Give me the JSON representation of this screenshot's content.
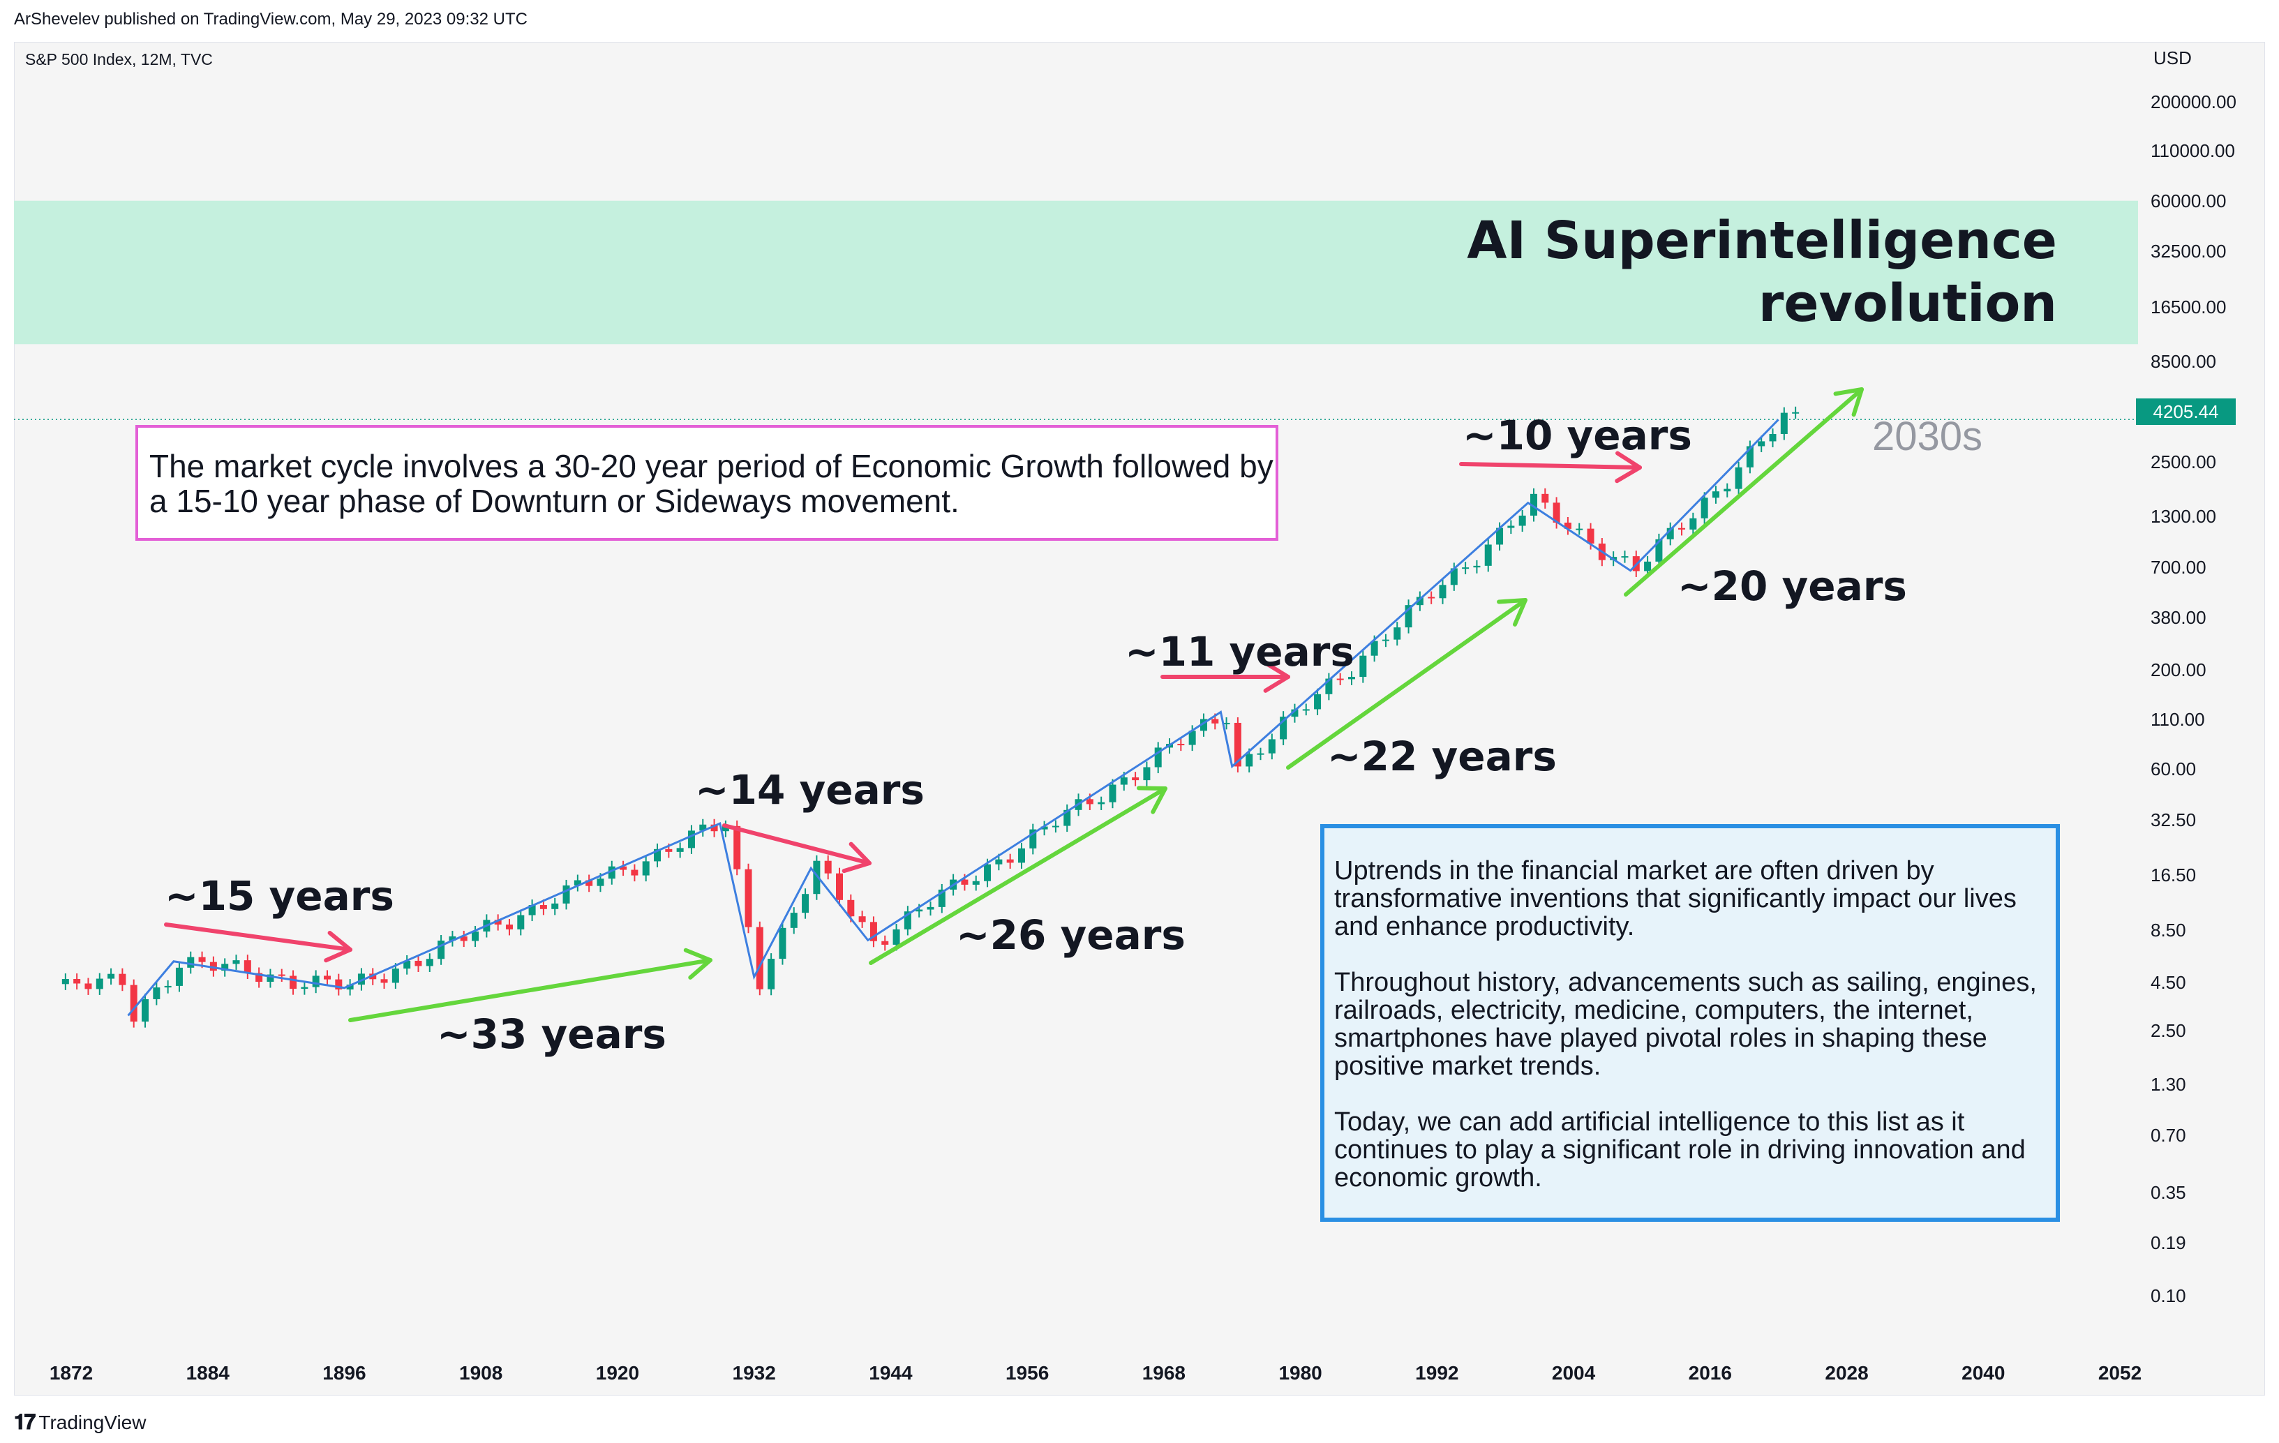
{
  "header": {
    "published": "ArShevelev published on TradingView.com, May 29, 2023 09:32 UTC",
    "symbol": "S&P 500 Index, 12M, TVC",
    "currency": "USD"
  },
  "price_tag": "4205.44",
  "band": {
    "title_line1": "AI Superintelligence",
    "title_line2": "revolution",
    "color": "#c5f0de"
  },
  "notes": {
    "cycle": "The market cycle involves a 30-20 year period of Economic Growth followed by a 15-10 year phase of Downturn or Sideways movement.",
    "uptrends_p1": "Uptrends in the financial market are often driven by transformative inventions that significantly impact our lives and enhance productivity.",
    "uptrends_p2": "Throughout history, advancements such as sailing, engines, railroads, electricity, medicine, computers, the internet, smartphones have played pivotal roles in shaping these positive market trends.",
    "uptrends_p3": "Today, we can add artificial intelligence to this list as it continues to play a significant role in driving innovation and economic growth."
  },
  "annotations": {
    "y15": "~15 years",
    "y33": "~33 years",
    "y14": "~14 years",
    "y26": "~26 years",
    "y11": "~11 years",
    "y22": "~22 years",
    "y10": "~10 years",
    "y20": "~20 years",
    "y2030": "2030s"
  },
  "footer": {
    "brand": "TradingView"
  },
  "colors": {
    "up": "#089981",
    "down": "#f23645",
    "trend": "#3d7fe0",
    "red_arrow": "#f0436c",
    "green_arrow": "#64d63c"
  },
  "chart_data": {
    "type": "candlestick",
    "title": "S&P 500 Index, 12M, TVC",
    "x_ticks": [
      "1872",
      "1884",
      "1896",
      "1908",
      "1920",
      "1932",
      "1944",
      "1956",
      "1968",
      "1980",
      "1992",
      "2004",
      "2016",
      "2028",
      "2040",
      "2052"
    ],
    "y_ticks": [
      "200000.00",
      "110000.00",
      "60000.00",
      "32500.00",
      "16500.00",
      "8500.00",
      "2500.00",
      "1300.00",
      "700.00",
      "380.00",
      "200.00",
      "110.00",
      "60.00",
      "32.50",
      "16.50",
      "8.50",
      "4.50",
      "2.50",
      "1.30",
      "0.70",
      "0.35",
      "0.19",
      "0.10"
    ],
    "y_scale": "log",
    "last_price": 4205.44,
    "trend_line": [
      {
        "year": 1877,
        "value": 3.0
      },
      {
        "year": 1881,
        "value": 5.8
      },
      {
        "year": 1896,
        "value": 4.2
      },
      {
        "year": 1929,
        "value": 31.0
      },
      {
        "year": 1932,
        "value": 4.8
      },
      {
        "year": 1937,
        "value": 18.0
      },
      {
        "year": 1942,
        "value": 7.5
      },
      {
        "year": 1973,
        "value": 120.0
      },
      {
        "year": 1974,
        "value": 62.0
      },
      {
        "year": 2000,
        "value": 1527.0
      },
      {
        "year": 2009,
        "value": 670.0
      },
      {
        "year": 2022,
        "value": 4200.0
      }
    ],
    "highlight_band": {
      "label": "AI Superintelligence revolution",
      "y_range": [
        10500,
        60000
      ]
    }
  }
}
